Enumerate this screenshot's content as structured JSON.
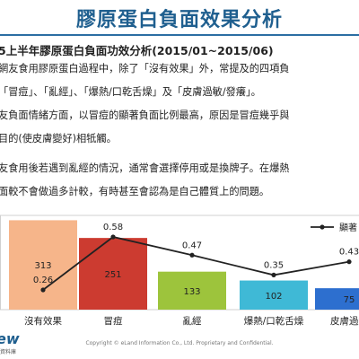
{
  "page": {
    "title": "膠原蛋白負面效果分析",
    "subtitle": "5上半年膠原蛋白負面功效分析(2015/01~2015/06)",
    "paragraphs": [
      "網友食用膠原蛋白過程中，除了「沒有效果」外，常提及的四項負",
      "「冒痘」、「亂經」、「爆熱/口乾舌燥」及「皮膚過敏/發癢」。",
      "友負面情緒方面，以冒痘的顯著負面比例最高，原因是冒痘幾乎與",
      "目的(使皮膚變好)相牴觸。",
      "友食用後若遇到亂經的情況，通常會選擇停用或是換牌子。在爆熱",
      "面較不會做過多計較，有時甚至會認為是自己體質上的問題。"
    ],
    "copyright": "Copyright © eLand Information Co., Ltd. Proprietary and Confidential.",
    "logo_text": "ew",
    "logo_sub": "資料庫"
  },
  "chart_data": {
    "type": "bar",
    "categories": [
      "沒有效果",
      "冒痘",
      "亂經",
      "爆熱/口乾舌燥",
      "皮膚過敏"
    ],
    "series": [
      {
        "values": [
          313,
          251,
          133,
          102,
          75
        ]
      },
      {
        "name": "顯著",
        "type": "line",
        "values": [
          0.26,
          0.58,
          0.47,
          0.35,
          0.43
        ]
      }
    ],
    "value_labels": [
      "313",
      "251",
      "133",
      "102",
      "75"
    ],
    "line_labels": [
      "0.26",
      "0.58",
      "0.47",
      "0.35",
      "0.43"
    ],
    "bar_colors": [
      "#f6b58a",
      "#cc3b30",
      "#9dc43c",
      "#3fb9d6",
      "#2d6fcf"
    ],
    "line_color": "#222222",
    "legend": "top-right"
  }
}
